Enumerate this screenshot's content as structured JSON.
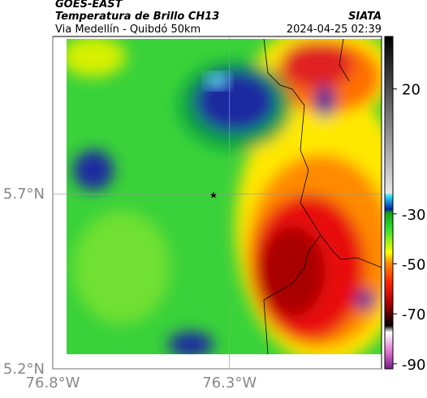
{
  "header": {
    "title": "GOES-EAST",
    "subtitle": "Temperatura de Brillo CH13",
    "route": "Via Medellín - Quibdó 50km",
    "source": "SIATA",
    "timestamp": "2024-04-25 02:39"
  },
  "map": {
    "xlim": [
      -76.8,
      -75.87
    ],
    "ylim": [
      5.2,
      6.15
    ],
    "xticks": [
      {
        "value": -76.8,
        "label": "76.8°W"
      },
      {
        "value": -76.3,
        "label": "76.3°W"
      }
    ],
    "yticks": [
      {
        "value": 5.2,
        "label": "5.2°N"
      },
      {
        "value": 5.7,
        "label": "5.7°N"
      }
    ],
    "grid": true
  },
  "colorbar": {
    "lim": [
      -92,
      41
    ],
    "ticks": [
      20,
      -30,
      -50,
      -70,
      -90
    ]
  }
}
